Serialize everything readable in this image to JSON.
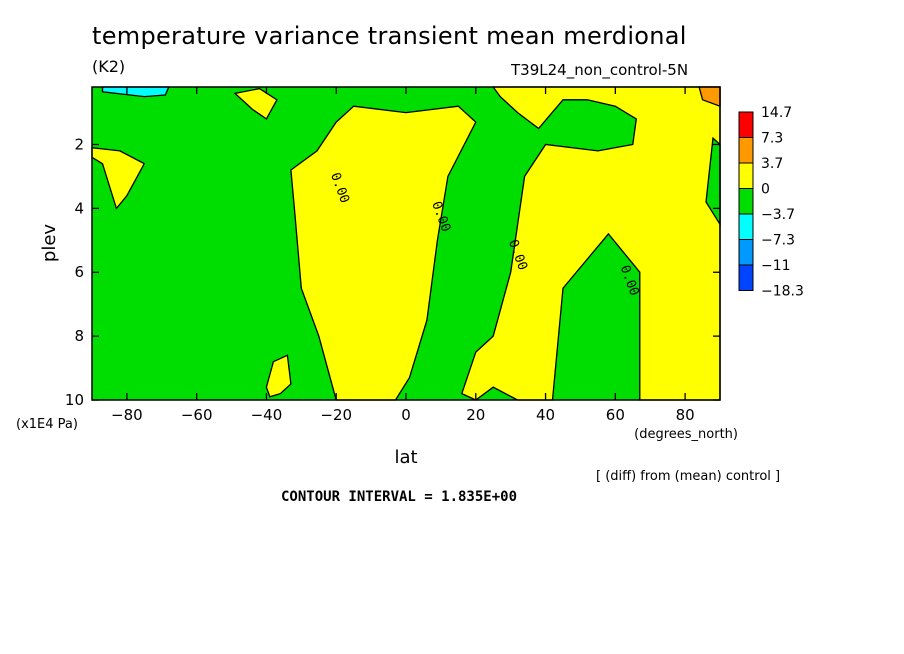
{
  "header": {
    "title": "temperature variance transient mean merdional",
    "units": "(K2)",
    "run": "T39L24_non_control-5N",
    "note": "[ (diff) from (mean) control ]",
    "contour_interval": "CONTOUR INTERVAL = 1.835E+00"
  },
  "chart_data": {
    "type": "contour",
    "xlabel": "lat",
    "xunit": "(degrees_north)",
    "ylabel": "plev",
    "yunit": "(x1E4 Pa)",
    "xlim": [
      -90,
      90
    ],
    "ylim": [
      10,
      0.2
    ],
    "xticks": [
      -80,
      -60,
      -40,
      -20,
      0,
      20,
      40,
      60,
      80
    ],
    "yticks": [
      2,
      4,
      6,
      8,
      10
    ],
    "xtick_labels": [
      "−80",
      "−60",
      "−40",
      "−20",
      "0",
      "20",
      "40",
      "60",
      "80"
    ],
    "ytick_labels": [
      "2",
      "4",
      "6",
      "8",
      "10"
    ],
    "legend": {
      "placement": "right",
      "levels": [
        "14.7",
        "7.3",
        "3.7",
        "0",
        "−3.7",
        "−7.3",
        "−11",
        "−18.3"
      ],
      "colors": [
        "#ff0000",
        "#ff9900",
        "#ffff00",
        "#00dd00",
        "#00ffff",
        "#0099ff",
        "#0044ff"
      ]
    },
    "contour_labels": [
      {
        "text": "0.00",
        "lat": -20,
        "plev": 3.4
      },
      {
        "text": "0.00",
        "lat": 9,
        "plev": 4.3
      },
      {
        "text": "0.00",
        "lat": 31,
        "plev": 5.5
      },
      {
        "text": "0.00",
        "lat": 63,
        "plev": 6.3
      }
    ],
    "regions": [
      {
        "name": "yellow-column-south",
        "color": "#ffff00",
        "points": [
          [
            -25.5,
            2.2
          ],
          [
            -20,
            1.3
          ],
          [
            -15,
            0.8
          ],
          [
            0,
            1.0
          ],
          [
            15,
            0.8
          ],
          [
            20,
            1.3
          ],
          [
            12,
            3
          ],
          [
            9,
            5
          ],
          [
            6,
            7.5
          ],
          [
            1,
            9.3
          ],
          [
            -3,
            10
          ],
          [
            -20,
            10
          ],
          [
            -25,
            8
          ],
          [
            -30,
            6.5
          ],
          [
            -32,
            4
          ],
          [
            -33,
            2.8
          ]
        ]
      },
      {
        "name": "yellow-east",
        "color": "#ffff00",
        "points": [
          [
            25,
            0.2
          ],
          [
            90,
            0.2
          ],
          [
            90,
            10
          ],
          [
            67,
            10
          ],
          [
            67,
            6
          ],
          [
            58,
            4.8
          ],
          [
            45,
            6.5
          ],
          [
            42,
            10
          ],
          [
            32,
            10
          ],
          [
            25,
            9.6
          ],
          [
            20,
            10
          ],
          [
            16,
            9.8
          ],
          [
            20,
            8.5
          ],
          [
            25,
            8
          ],
          [
            30,
            6
          ],
          [
            34,
            3
          ],
          [
            40,
            2
          ],
          [
            55,
            2.2
          ],
          [
            65,
            2
          ],
          [
            66,
            1.2
          ],
          [
            60,
            0.8
          ],
          [
            52,
            0.6
          ],
          [
            45,
            0.6
          ],
          [
            38,
            1.5
          ],
          [
            32,
            1
          ],
          [
            27,
            0.5
          ]
        ]
      },
      {
        "name": "green-island-east",
        "color": "#00dd00",
        "points": [
          [
            88,
            1.8
          ],
          [
            90,
            2.0
          ],
          [
            90,
            4.5
          ],
          [
            86,
            3.8
          ]
        ]
      },
      {
        "name": "yellow-patch-west",
        "color": "#ffff00",
        "points": [
          [
            -90,
            2.4
          ],
          [
            -87,
            2.6
          ],
          [
            -83,
            4.0
          ],
          [
            -80,
            3.6
          ],
          [
            -75,
            2.6
          ],
          [
            -82,
            2.2
          ],
          [
            -90,
            2.1
          ]
        ]
      },
      {
        "name": "yellow-patch-southwest",
        "color": "#ffff00",
        "points": [
          [
            -40,
            9.6
          ],
          [
            -38,
            8.8
          ],
          [
            -34,
            8.6
          ],
          [
            -33,
            9.5
          ],
          [
            -36,
            9.8
          ],
          [
            -39,
            9.9
          ]
        ]
      },
      {
        "name": "yellow-patch-top",
        "color": "#ffff00",
        "points": [
          [
            -49,
            0.4
          ],
          [
            -42,
            0.25
          ],
          [
            -37,
            0.6
          ],
          [
            -40,
            1.2
          ],
          [
            -44,
            0.9
          ]
        ]
      },
      {
        "name": "orange-patch-ne",
        "color": "#ff9900",
        "points": [
          [
            84,
            0.2
          ],
          [
            90,
            0.2
          ],
          [
            90,
            0.8
          ],
          [
            85,
            0.6
          ]
        ]
      },
      {
        "name": "cyan-patch-nw",
        "color": "#00ffff",
        "points": [
          [
            -87,
            0.2
          ],
          [
            -68,
            0.2
          ],
          [
            -69,
            0.45
          ],
          [
            -75,
            0.5
          ],
          [
            -87,
            0.35
          ]
        ]
      }
    ]
  }
}
